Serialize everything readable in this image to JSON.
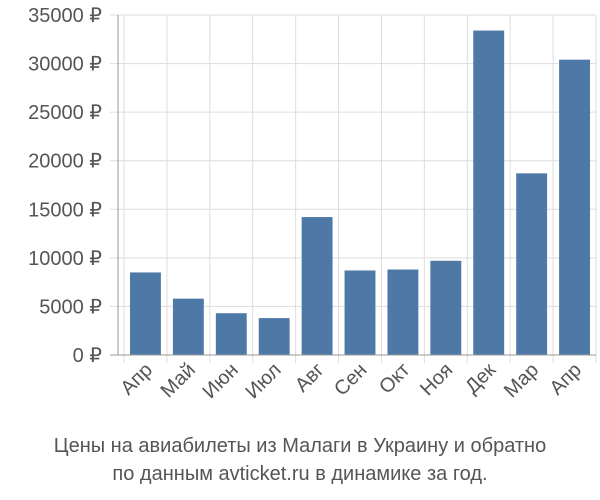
{
  "colors": {
    "bar": "#4e79a7",
    "grid": "#dddddd",
    "axis": "#999999",
    "text": "#555555"
  },
  "caption": {
    "line1": "Цены на авиабилеты из Малаги в Украину и обратно",
    "line2": "по данным avticket.ru в динамике за год."
  },
  "chart_data": {
    "type": "bar",
    "title": "",
    "xlabel": "",
    "ylabel": "",
    "ylim": [
      0,
      35000
    ],
    "grid": true,
    "y_ticks": [
      0,
      5000,
      10000,
      15000,
      20000,
      25000,
      30000,
      35000
    ],
    "y_tick_labels": [
      "0 ₽",
      "5000 ₽",
      "10000 ₽",
      "15000 ₽",
      "20000 ₽",
      "25000 ₽",
      "30000 ₽",
      "35000 ₽"
    ],
    "categories": [
      "Апр",
      "Май",
      "Июн",
      "Июл",
      "Авг",
      "Сен",
      "Окт",
      "Ноя",
      "Дек",
      "Мар",
      "Апр"
    ],
    "values": [
      8500,
      5800,
      4300,
      3800,
      14200,
      8700,
      8800,
      9700,
      33400,
      18700,
      30400
    ]
  }
}
